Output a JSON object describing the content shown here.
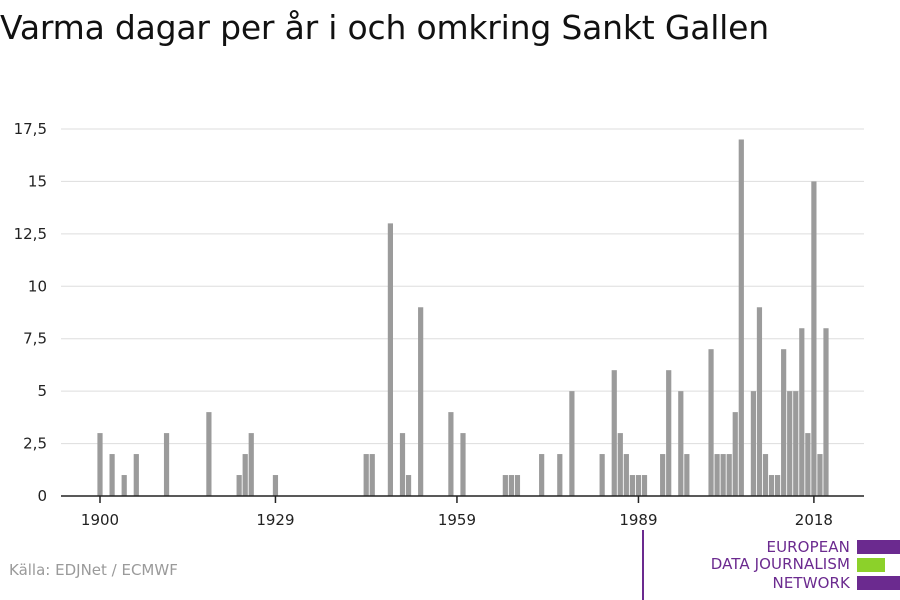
{
  "title": "Varma dagar per år i och omkring Sankt Gallen",
  "source": "Källa: EDJNet / ECMWF",
  "logo": {
    "lines": [
      "EUROPEAN",
      "DATA JOURNALISM",
      "NETWORK"
    ],
    "colors": {
      "purple": "#6b2a8f",
      "green": "#8cd12a"
    }
  },
  "chart_data": {
    "type": "bar",
    "title": "Varma dagar per år i och omkring Sankt Gallen",
    "xlabel": "",
    "ylabel": "",
    "xlim": [
      1900,
      2021
    ],
    "ylim": [
      0,
      17.5
    ],
    "x_ticks": [
      1900,
      1929,
      1959,
      1989,
      2018
    ],
    "y_ticks": [
      {
        "value": 0,
        "label": "0"
      },
      {
        "value": 2.5,
        "label": "2,5"
      },
      {
        "value": 5,
        "label": "5"
      },
      {
        "value": 7.5,
        "label": "7,5"
      },
      {
        "value": 10,
        "label": "10"
      },
      {
        "value": 12.5,
        "label": "12,5"
      },
      {
        "value": 15,
        "label": "15"
      },
      {
        "value": 17.5,
        "label": "17,5"
      }
    ],
    "grid": true,
    "bar_color": "#9b9b9b",
    "categories": [
      1900,
      1901,
      1902,
      1903,
      1904,
      1905,
      1906,
      1907,
      1908,
      1909,
      1910,
      1911,
      1912,
      1913,
      1914,
      1915,
      1916,
      1917,
      1918,
      1919,
      1920,
      1921,
      1922,
      1923,
      1924,
      1925,
      1926,
      1927,
      1928,
      1929,
      1930,
      1931,
      1932,
      1933,
      1934,
      1935,
      1936,
      1937,
      1938,
      1939,
      1940,
      1941,
      1942,
      1943,
      1944,
      1945,
      1946,
      1947,
      1948,
      1949,
      1950,
      1951,
      1952,
      1953,
      1954,
      1955,
      1956,
      1957,
      1958,
      1959,
      1960,
      1961,
      1962,
      1963,
      1964,
      1965,
      1966,
      1967,
      1968,
      1969,
      1970,
      1971,
      1972,
      1973,
      1974,
      1975,
      1976,
      1977,
      1978,
      1979,
      1980,
      1981,
      1982,
      1983,
      1984,
      1985,
      1986,
      1987,
      1988,
      1989,
      1990,
      1991,
      1992,
      1993,
      1994,
      1995,
      1996,
      1997,
      1998,
      1999,
      2000,
      2001,
      2002,
      2003,
      2004,
      2005,
      2006,
      2007,
      2008,
      2009,
      2010,
      2011,
      2012,
      2013,
      2014,
      2015,
      2016,
      2017,
      2018,
      2019,
      2020
    ],
    "values": [
      3,
      0,
      2,
      0,
      1,
      0,
      2,
      0,
      0,
      0,
      0,
      3,
      0,
      0,
      0,
      0,
      0,
      0,
      4,
      0,
      0,
      0,
      0,
      1,
      2,
      3,
      0,
      0,
      0,
      1,
      0,
      0,
      0,
      0,
      0,
      0,
      0,
      0,
      0,
      0,
      0,
      0,
      0,
      0,
      2,
      2,
      0,
      0,
      13,
      0,
      3,
      1,
      0,
      9,
      0,
      0,
      0,
      0,
      4,
      0,
      3,
      0,
      0,
      0,
      0,
      0,
      0,
      1,
      1,
      1,
      0,
      0,
      0,
      2,
      0,
      0,
      2,
      0,
      5,
      0,
      0,
      0,
      0,
      2,
      0,
      6,
      3,
      2,
      1,
      1,
      1,
      0,
      0,
      2,
      6,
      0,
      5,
      2,
      0,
      0,
      0,
      7,
      2,
      2,
      2,
      4,
      17,
      0,
      5,
      9,
      2,
      1,
      1,
      7,
      5,
      5,
      8,
      3,
      15,
      2,
      8
    ]
  }
}
